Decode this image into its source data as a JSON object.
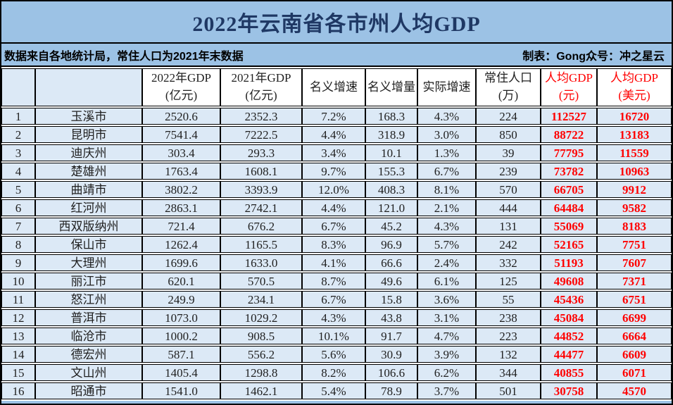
{
  "title": "2022年云南省各市州人均GDP",
  "subtitle": {
    "left": "数据来自各地统计局，常住人口为2021年末数据",
    "right": "制表：Gong众号：冲之星云"
  },
  "colors": {
    "banner_bg": "#9CC2E5",
    "title_text": "#1F3864",
    "row_bg": "#DCE9F6",
    "header_bg": "#FFFFFF",
    "accent_red": "#FF0000",
    "border": "#000000"
  },
  "chart_data": {
    "type": "table",
    "title": "2022年云南省各市州人均GDP",
    "columns": [
      {
        "key": "rank",
        "lines": [
          ""
        ],
        "header_blue": true,
        "emphasis": false
      },
      {
        "key": "city",
        "lines": [
          ""
        ],
        "header_blue": true,
        "emphasis": false
      },
      {
        "key": "gdp-2022",
        "lines": [
          "2022年GDP",
          "(亿元)"
        ],
        "header_blue": false,
        "emphasis": false
      },
      {
        "key": "gdp-2021",
        "lines": [
          "2021年GDP",
          "(亿元)"
        ],
        "header_blue": false,
        "emphasis": false
      },
      {
        "key": "nominal-growth",
        "lines": [
          "名义增速"
        ],
        "header_blue": false,
        "emphasis": false
      },
      {
        "key": "nominal-gain",
        "lines": [
          "名义增量"
        ],
        "header_blue": false,
        "emphasis": false
      },
      {
        "key": "real-growth",
        "lines": [
          "实际增速"
        ],
        "header_blue": false,
        "emphasis": false
      },
      {
        "key": "population",
        "lines": [
          "常住人口",
          "(万)"
        ],
        "header_blue": false,
        "emphasis": false
      },
      {
        "key": "gdp-per-cap-cny",
        "lines": [
          "人均GDP",
          "(元)"
        ],
        "header_blue": false,
        "emphasis": true
      },
      {
        "key": "gdp-per-cap-usd",
        "lines": [
          "人均GDP",
          "(美元)"
        ],
        "header_blue": false,
        "emphasis": true
      }
    ],
    "rows": [
      [
        "1",
        "玉溪市",
        "2520.6",
        "2352.3",
        "7.2%",
        "168.3",
        "4.3%",
        "224",
        "112527",
        "16720"
      ],
      [
        "2",
        "昆明市",
        "7541.4",
        "7222.5",
        "4.4%",
        "318.9",
        "3.0%",
        "850",
        "88722",
        "13183"
      ],
      [
        "3",
        "迪庆州",
        "303.4",
        "293.3",
        "3.4%",
        "10.1",
        "1.3%",
        "39",
        "77795",
        "11559"
      ],
      [
        "4",
        "楚雄州",
        "1763.4",
        "1608.1",
        "9.7%",
        "155.3",
        "6.7%",
        "239",
        "73782",
        "10963"
      ],
      [
        "5",
        "曲靖市",
        "3802.2",
        "3393.9",
        "12.0%",
        "408.3",
        "8.1%",
        "570",
        "66705",
        "9912"
      ],
      [
        "6",
        "红河州",
        "2863.1",
        "2742.1",
        "4.4%",
        "121.0",
        "2.1%",
        "444",
        "64484",
        "9582"
      ],
      [
        "7",
        "西双版纳州",
        "721.4",
        "676.2",
        "6.7%",
        "45.2",
        "4.3%",
        "131",
        "55069",
        "8183"
      ],
      [
        "8",
        "保山市",
        "1262.4",
        "1165.5",
        "8.3%",
        "96.9",
        "5.7%",
        "242",
        "52165",
        "7751"
      ],
      [
        "9",
        "大理州",
        "1699.6",
        "1633.0",
        "4.1%",
        "66.6",
        "2.4%",
        "332",
        "51193",
        "7607"
      ],
      [
        "10",
        "丽江市",
        "620.1",
        "570.5",
        "8.7%",
        "49.6",
        "6.1%",
        "125",
        "49608",
        "7371"
      ],
      [
        "11",
        "怒江州",
        "249.9",
        "234.1",
        "6.7%",
        "15.8",
        "3.6%",
        "55",
        "45436",
        "6751"
      ],
      [
        "12",
        "普洱市",
        "1073.0",
        "1029.2",
        "4.3%",
        "43.8",
        "3.1%",
        "238",
        "45084",
        "6699"
      ],
      [
        "13",
        "临沧市",
        "1000.2",
        "908.5",
        "10.1%",
        "91.7",
        "4.7%",
        "223",
        "44852",
        "6664"
      ],
      [
        "14",
        "德宏州",
        "587.1",
        "556.2",
        "5.6%",
        "30.9",
        "3.9%",
        "132",
        "44477",
        "6609"
      ],
      [
        "15",
        "文山州",
        "1405.4",
        "1298.8",
        "8.2%",
        "106.6",
        "6.2%",
        "344",
        "40855",
        "6071"
      ],
      [
        "16",
        "昭通市",
        "1541.0",
        "1462.1",
        "5.4%",
        "78.9",
        "3.7%",
        "501",
        "30758",
        "4570"
      ]
    ]
  }
}
